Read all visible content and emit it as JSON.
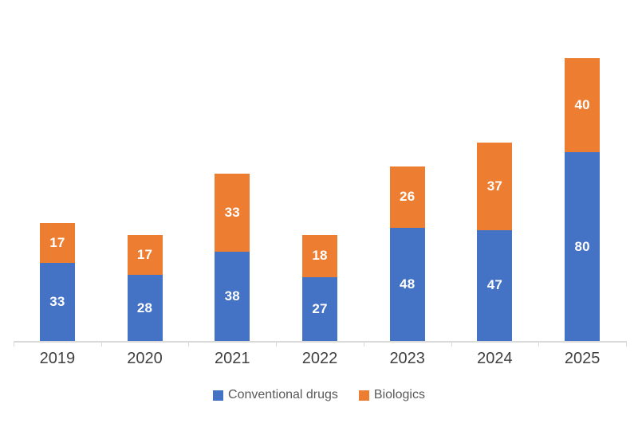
{
  "chart_data": {
    "type": "bar",
    "stacked": true,
    "title": "",
    "xlabel": "",
    "ylabel": "",
    "categories": [
      "2019",
      "2020",
      "2021",
      "2022",
      "2023",
      "2024",
      "2025"
    ],
    "series": [
      {
        "name": "Conventional drugs",
        "color": "#4472C4",
        "values": [
          33,
          28,
          38,
          27,
          48,
          47,
          80
        ]
      },
      {
        "name": "Biologics",
        "color": "#ED7D31",
        "values": [
          17,
          17,
          33,
          18,
          26,
          37,
          40
        ]
      }
    ],
    "totals": [
      50,
      45,
      71,
      45,
      74,
      84,
      120
    ],
    "ylim": [
      0,
      120
    ],
    "grid": false,
    "data_labels": true,
    "legend_position": "bottom"
  },
  "colors": {
    "background": "#FFFFFF",
    "axis_line": "#D9D9D9",
    "axis_label_text": "#404040",
    "legend_text": "#595959",
    "value_label_text": "#FFFFFF"
  }
}
